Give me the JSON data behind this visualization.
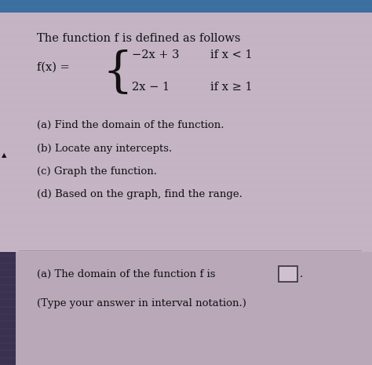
{
  "bg_color": "#c4b4c4",
  "title_text": "The function f is defined as follows",
  "fx_label": "f(x) =",
  "piece1_expr": "−2x + 3",
  "piece1_cond": "if x < 1",
  "piece2_expr": "2x − 1",
  "piece2_cond": "if x ≥ 1",
  "parts": [
    "(a) Find the domain of the function.",
    "(b) Locate any intercepts.",
    "(c) Graph the function.",
    "(d) Based on the graph, find the range."
  ],
  "bottom_line1": "(a) The domain of the function f is",
  "bottom_line2": "(Type your answer in interval notation.)",
  "text_color": "#111111",
  "separator_color": "#999999",
  "box_color": "#333333",
  "left_bar_color": "#3a3050",
  "top_bar_color": "#3a6fa0",
  "bottom_bg_color": "#b8a8b8"
}
